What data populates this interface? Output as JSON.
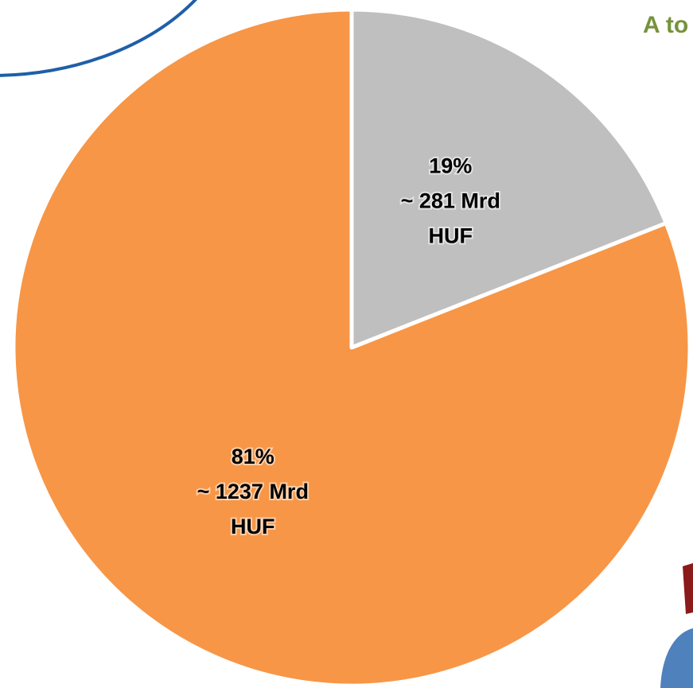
{
  "chart_data": {
    "type": "pie",
    "title": "A to",
    "values": [
      19,
      81
    ],
    "value_labels": [
      "19%",
      "81%"
    ],
    "details": [
      [
        "~ 281 Mrd",
        "HUF"
      ],
      [
        "~ 1237 Mrd",
        "HUF"
      ]
    ],
    "colors": [
      "#bfbfbf",
      "#f79646"
    ]
  }
}
